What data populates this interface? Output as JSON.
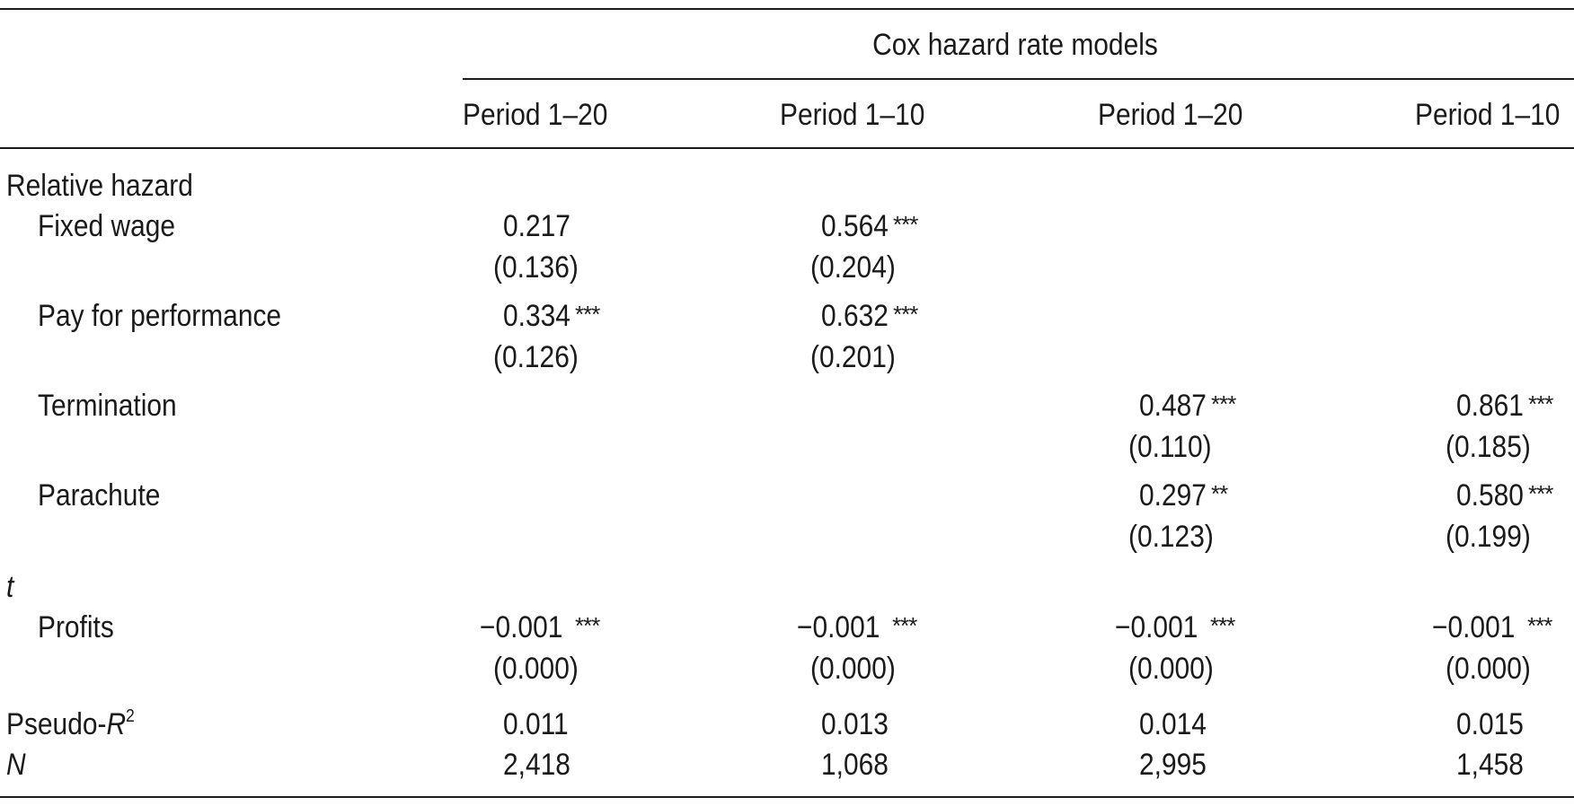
{
  "table": {
    "group_header": "Cox hazard rate models",
    "columns": [
      "Period 1–20",
      "Period 1–10",
      "Period 1–20",
      "Period 1–10"
    ],
    "section_relative_hazard": "Relative hazard",
    "section_t": "t",
    "rows": {
      "fixed_wage": {
        "label": "Fixed wage",
        "c1": {
          "value": "0.217",
          "stars": "",
          "se": "(0.136)"
        },
        "c2": {
          "value": "0.564",
          "stars": "***",
          "se": "(0.204)"
        }
      },
      "pay_for_performance": {
        "label": "Pay for performance",
        "c1": {
          "value": "0.334",
          "stars": "***",
          "se": "(0.126)"
        },
        "c2": {
          "value": "0.632",
          "stars": "***",
          "se": "(0.201)"
        }
      },
      "termination": {
        "label": "Termination",
        "c3": {
          "value": "0.487",
          "stars": "***",
          "se": "(0.110)"
        },
        "c4": {
          "value": "0.861",
          "stars": "***",
          "se": "(0.185)"
        }
      },
      "parachute": {
        "label": "Parachute",
        "c3": {
          "value": "0.297",
          "stars": "**",
          "se": "(0.123)"
        },
        "c4": {
          "value": "0.580",
          "stars": "***",
          "se": "(0.199)"
        }
      },
      "profits": {
        "label": "Profits",
        "c1": {
          "value": "−0.001",
          "stars": "***",
          "se": "(0.000)"
        },
        "c2": {
          "value": "−0.001",
          "stars": "***",
          "se": "(0.000)"
        },
        "c3": {
          "value": "−0.001",
          "stars": "***",
          "se": "(0.000)"
        },
        "c4": {
          "value": "−0.001",
          "stars": "***",
          "se": "(0.000)"
        }
      }
    },
    "pseudo_r2": {
      "label_prefix": "Pseudo-",
      "label_var": "R",
      "label_sup": "2",
      "values": [
        "0.011",
        "0.013",
        "0.014",
        "0.015"
      ]
    },
    "n": {
      "label": "N",
      "values": [
        "2,418",
        "1,068",
        "2,995",
        "1,458"
      ]
    }
  }
}
